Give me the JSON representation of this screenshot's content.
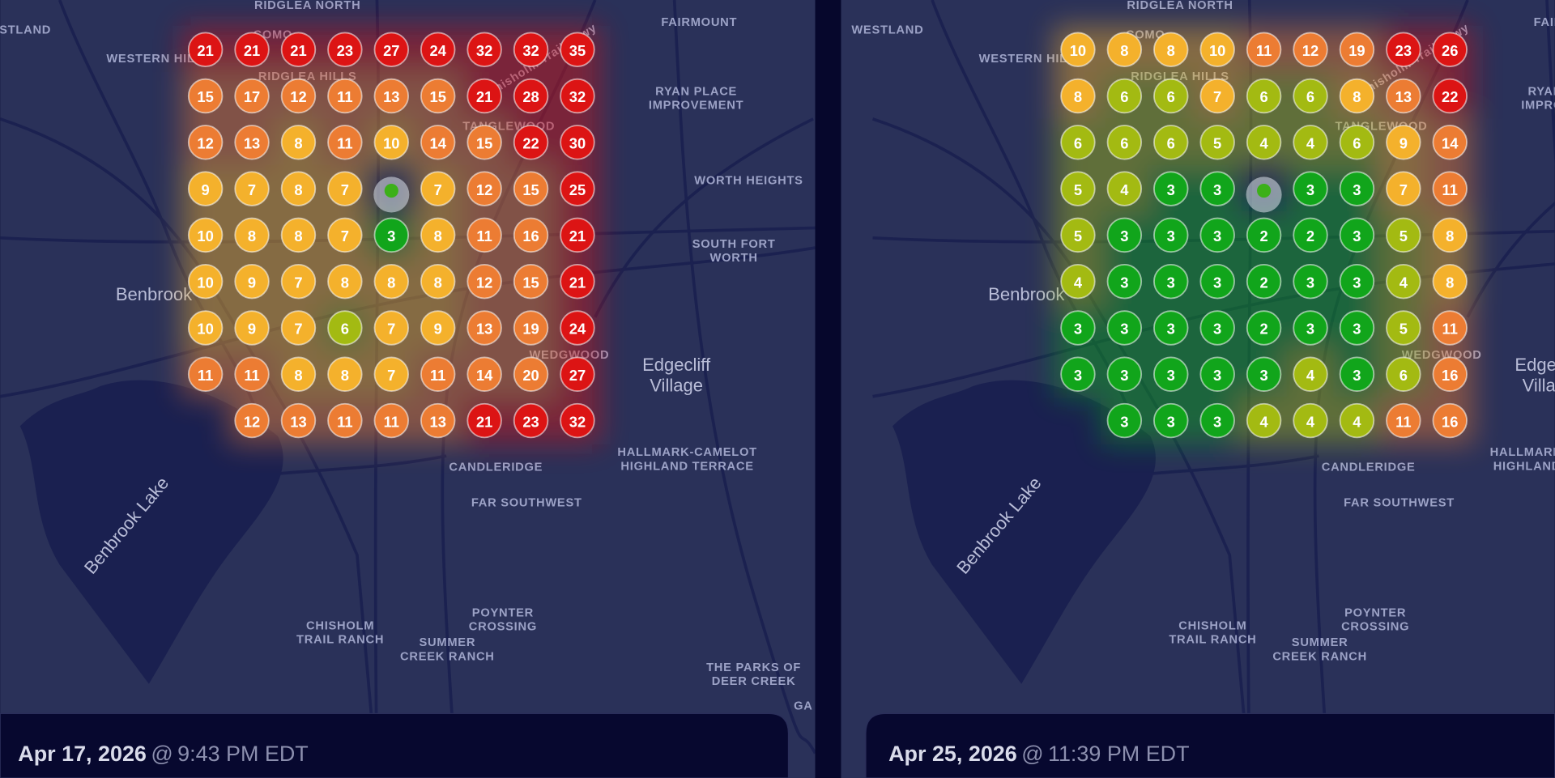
{
  "panels": [
    {
      "grid": [
        [
          21,
          21,
          21,
          23,
          27,
          24,
          32,
          32,
          35
        ],
        [
          15,
          17,
          12,
          11,
          13,
          15,
          21,
          28,
          32
        ],
        [
          12,
          13,
          8,
          11,
          10,
          14,
          15,
          22,
          30
        ],
        [
          9,
          7,
          8,
          7,
          null,
          7,
          12,
          15,
          25
        ],
        [
          10,
          8,
          8,
          7,
          3,
          8,
          11,
          16,
          21
        ],
        [
          10,
          9,
          7,
          8,
          8,
          8,
          12,
          15,
          21
        ],
        [
          10,
          9,
          7,
          6,
          7,
          9,
          13,
          19,
          24
        ],
        [
          11,
          11,
          8,
          8,
          7,
          11,
          14,
          20,
          27
        ],
        [
          null,
          12,
          13,
          11,
          11,
          13,
          21,
          23,
          32
        ]
      ],
      "date": "Apr 17, 2026",
      "at": "@",
      "time": "9:43 PM EDT"
    },
    {
      "grid": [
        [
          10,
          8,
          8,
          10,
          11,
          12,
          19,
          23,
          26
        ],
        [
          8,
          6,
          6,
          7,
          6,
          6,
          8,
          13,
          22
        ],
        [
          6,
          6,
          6,
          5,
          4,
          4,
          6,
          9,
          14
        ],
        [
          5,
          4,
          3,
          3,
          null,
          3,
          3,
          7,
          11
        ],
        [
          5,
          3,
          3,
          3,
          2,
          2,
          3,
          5,
          8
        ],
        [
          4,
          3,
          3,
          3,
          2,
          3,
          3,
          4,
          8
        ],
        [
          3,
          3,
          3,
          3,
          2,
          3,
          3,
          5,
          11
        ],
        [
          3,
          3,
          3,
          3,
          3,
          4,
          3,
          6,
          16
        ],
        [
          null,
          3,
          3,
          3,
          4,
          4,
          4,
          11,
          16
        ]
      ],
      "date": "Apr 25, 2026",
      "at": "@",
      "time": "11:39 PM EDT"
    }
  ],
  "map_labels": [
    [
      "RIDGLEA NORTH"
    ],
    [
      "WESTLAND"
    ],
    [
      "WESTERN HILLS"
    ],
    [
      "COMO"
    ],
    [
      "Chisholm Trail Pkwy"
    ],
    [
      "FAIRMOUNT"
    ],
    [
      "RYAN PLACE",
      "IMPROVEMENT"
    ],
    [
      "RIDGLEA HILLS"
    ],
    [
      "TANGLEWOOD"
    ],
    [
      "WORTH HEIGHTS"
    ],
    [
      "SOUTH FORT",
      "WORTH"
    ],
    [
      "Benbrook"
    ],
    [
      "Edgecliff",
      "Village"
    ],
    [
      "WEDGWOOD"
    ],
    [
      "HALLMARK-CAMELOT",
      "HIGHLAND TERRACE"
    ],
    [
      "CANDLERIDGE"
    ],
    [
      "FAR SOUTHWEST"
    ],
    [
      "Benbrook Lake"
    ],
    [
      "POYNTER",
      "CROSSING"
    ],
    [
      "CHISHOLM",
      "TRAIL RANCH"
    ],
    [
      "SUMMER",
      "CREEK RANCH"
    ],
    [
      "THE PARKS OF",
      "DEER CREEK"
    ],
    [
      "GA"
    ]
  ]
}
